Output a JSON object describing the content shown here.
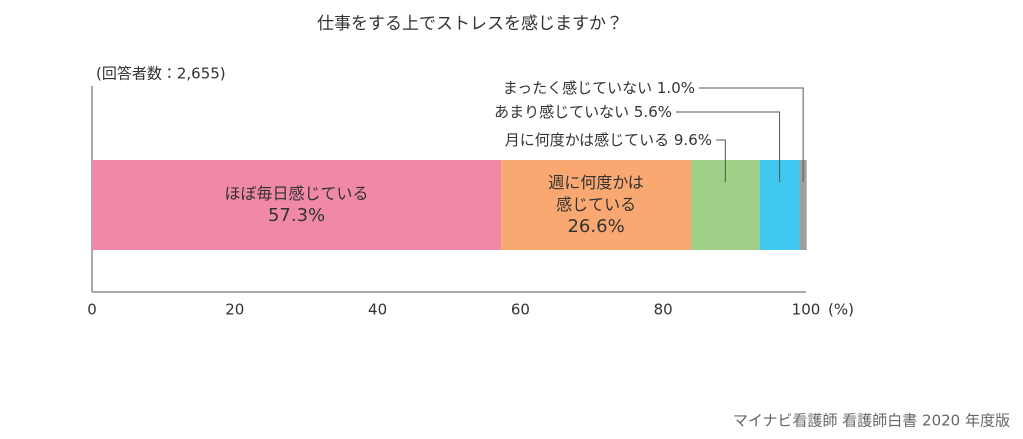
{
  "chart_data": {
    "type": "bar",
    "orientation": "horizontal",
    "stacked": true,
    "title": "仕事をする上でストレスを感じますか？",
    "note": "(回答者数：2,655)",
    "x_unit": "(%)",
    "source": "マイナビ看護師 看護師白書 2020 年度版",
    "xlim": [
      0,
      100
    ],
    "xticks": [
      0,
      20,
      40,
      60,
      80,
      100
    ],
    "grid": false,
    "series": [
      {
        "name": "ほぼ毎日感じている",
        "color": "#f088a8",
        "values": [
          57.3
        ],
        "value_labels": [
          "57.3%"
        ]
      },
      {
        "name": "週に何度かは感じている",
        "color": "#f8a870",
        "values": [
          26.6
        ],
        "value_labels": [
          "26.6%"
        ]
      },
      {
        "name": "月に何度かは感じている",
        "color": "#a0d088",
        "values": [
          9.6
        ],
        "value_labels": [
          "9.6%"
        ]
      },
      {
        "name": "あまり感じていない",
        "color": "#40c8f0",
        "values": [
          5.6
        ],
        "value_labels": [
          "5.6%"
        ]
      },
      {
        "name": "まったく感じていない",
        "color": "#a0a0a0",
        "values": [
          1.0
        ],
        "value_labels": [
          "1.0%"
        ]
      }
    ]
  }
}
